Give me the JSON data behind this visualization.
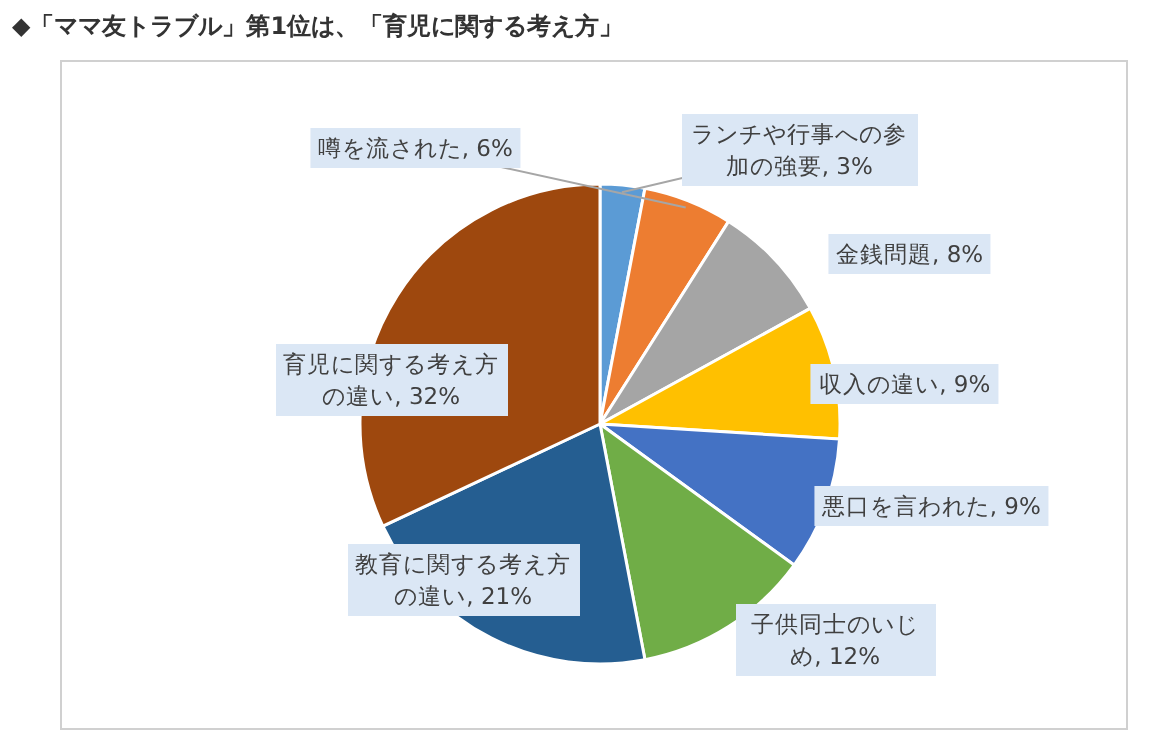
{
  "chart_data": {
    "type": "pie",
    "title": "◆「ママ友トラブル」第1位は、「育児に関する考え方」",
    "categories": [
      "ランチや行事への参加の強要",
      "噂を流された",
      "金銭問題",
      "収入の違い",
      "悪口を言われた",
      "子供同士のいじめ",
      "教育に関する考え方の違い",
      "育児に関する考え方の違い"
    ],
    "values": [
      3,
      6,
      8,
      9,
      9,
      12,
      21,
      32
    ],
    "value_labels": [
      "3%",
      "6%",
      "8%",
      "9%",
      "9%",
      "12%",
      "21%",
      "32%"
    ],
    "colors": [
      "#5b9bd5",
      "#ed7d31",
      "#a5a5a5",
      "#ffc000",
      "#4472c4",
      "#70ad47",
      "#255e91",
      "#9e480e"
    ]
  }
}
